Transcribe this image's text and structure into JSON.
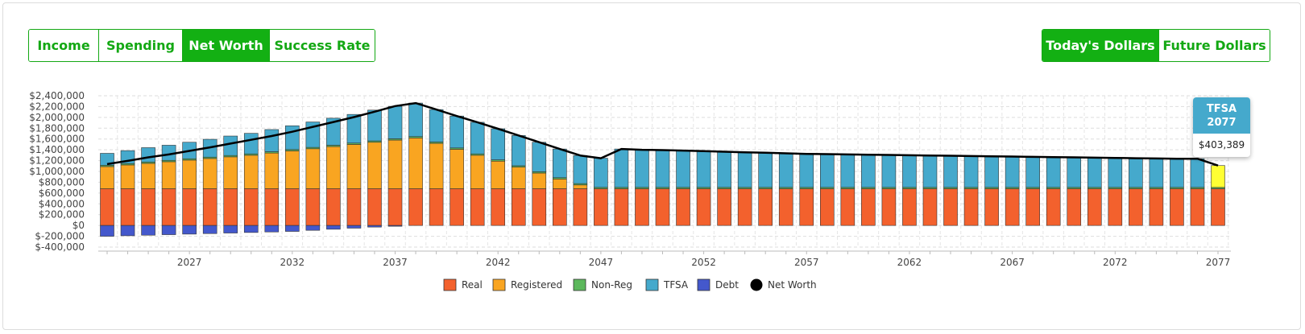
{
  "tabs": [
    {
      "label": "Income",
      "active": false
    },
    {
      "label": "Spending",
      "active": false
    },
    {
      "label": "Net Worth",
      "active": true
    },
    {
      "label": "Success Rate",
      "active": false
    }
  ],
  "dollar_toggle": [
    {
      "label": "Today's Dollars",
      "active": true
    },
    {
      "label": "Future Dollars",
      "active": false
    }
  ],
  "tooltip": {
    "series": "TFSA",
    "year": "2077",
    "value": "$403,389"
  },
  "colors": {
    "Real": "#f3612d",
    "Registered": "#f9a521",
    "Non-Reg": "#5cb85c",
    "TFSA": "#45a9cc",
    "Debt": "#4458cc",
    "Net Worth": "#000000",
    "highlight": "#ffff33",
    "accent": "#13b013"
  },
  "chart_data": {
    "type": "bar",
    "stacked": true,
    "x_start": 2023,
    "x_end": 2077,
    "xticks": [
      2027,
      2032,
      2037,
      2042,
      2047,
      2052,
      2057,
      2062,
      2067,
      2072,
      2077
    ],
    "ylim": [
      -400000,
      2400000
    ],
    "yticks": [
      2400000,
      2200000,
      2000000,
      1800000,
      1600000,
      1400000,
      1200000,
      1000000,
      800000,
      600000,
      400000,
      200000,
      0,
      -200000,
      -400000
    ],
    "ytick_labels": [
      "$2,400,000",
      "$2,200,000",
      "$2,000,000",
      "$1,800,000",
      "$1,600,000",
      "$1,400,000",
      "$1,200,000",
      "$1,000,000",
      "$800,000",
      "$600,000",
      "$400,000",
      "$200,000",
      "$0",
      "$-200,000",
      "$-400,000"
    ],
    "grid": true,
    "legend_position": "bottom",
    "highlight_year": 2077,
    "series": [
      {
        "name": "Real",
        "values": [
          680000,
          680000,
          680000,
          680000,
          680000,
          680000,
          680000,
          680000,
          680000,
          680000,
          680000,
          680000,
          680000,
          680000,
          680000,
          680000,
          680000,
          680000,
          680000,
          680000,
          680000,
          680000,
          680000,
          680000,
          680000,
          680000,
          680000,
          680000,
          680000,
          680000,
          680000,
          680000,
          680000,
          680000,
          680000,
          680000,
          680000,
          680000,
          680000,
          680000,
          680000,
          680000,
          680000,
          680000,
          680000,
          680000,
          680000,
          680000,
          680000,
          680000,
          680000,
          680000,
          680000,
          680000,
          680000
        ]
      },
      {
        "name": "Registered",
        "values": [
          410000,
          440000,
          470000,
          500000,
          530000,
          560000,
          590000,
          620000,
          660000,
          700000,
          740000,
          780000,
          820000,
          860000,
          900000,
          940000,
          840000,
          730000,
          620000,
          510000,
          400000,
          290000,
          180000,
          70000,
          0,
          0,
          0,
          0,
          0,
          0,
          0,
          0,
          0,
          0,
          0,
          0,
          0,
          0,
          0,
          0,
          0,
          0,
          0,
          0,
          0,
          0,
          0,
          0,
          0,
          0,
          0,
          0,
          0,
          0,
          0
        ]
      },
      {
        "name": "Non-Reg",
        "values": [
          25000,
          25000,
          25000,
          25000,
          25000,
          25000,
          25000,
          25000,
          25000,
          25000,
          25000,
          25000,
          25000,
          25000,
          25000,
          25000,
          25000,
          25000,
          25000,
          25000,
          25000,
          25000,
          25000,
          25000,
          25000,
          25000,
          25000,
          25000,
          25000,
          25000,
          25000,
          25000,
          25000,
          25000,
          25000,
          25000,
          25000,
          25000,
          25000,
          25000,
          25000,
          25000,
          25000,
          25000,
          25000,
          25000,
          25000,
          25000,
          25000,
          25000,
          25000,
          25000,
          25000,
          25000,
          25000
        ]
      },
      {
        "name": "TFSA",
        "values": [
          220000,
          240000,
          265000,
          280000,
          305000,
          330000,
          360000,
          380000,
          410000,
          440000,
          470000,
          500000,
          530000,
          570000,
          600000,
          620000,
          600000,
          590000,
          585000,
          575000,
          560000,
          545000,
          530000,
          520000,
          540000,
          710000,
          695000,
          690000,
          680000,
          670000,
          660000,
          650000,
          640000,
          630000,
          620000,
          615000,
          610000,
          605000,
          600000,
          595000,
          590000,
          585000,
          580000,
          575000,
          570000,
          565000,
          560000,
          555000,
          550000,
          545000,
          540000,
          535000,
          530000,
          530000,
          403389
        ]
      },
      {
        "name": "Debt",
        "values": [
          -200000,
          -190000,
          -180000,
          -170000,
          -160000,
          -150000,
          -140000,
          -130000,
          -120000,
          -110000,
          -90000,
          -70000,
          -50000,
          -30000,
          -15000,
          0,
          0,
          0,
          0,
          0,
          0,
          0,
          0,
          0,
          0,
          0,
          0,
          0,
          0,
          0,
          0,
          0,
          0,
          0,
          0,
          0,
          0,
          0,
          0,
          0,
          0,
          0,
          0,
          0,
          0,
          0,
          0,
          0,
          0,
          0,
          0,
          0,
          0,
          0,
          0
        ]
      },
      {
        "name": "Net Worth",
        "type": "line",
        "values": [
          1135000,
          1195000,
          1260000,
          1315000,
          1380000,
          1445000,
          1515000,
          1585000,
          1655000,
          1735000,
          1825000,
          1915000,
          2005000,
          2105000,
          2210000,
          2265000,
          2145000,
          2025000,
          1910000,
          1790000,
          1665000,
          1540000,
          1415000,
          1295000,
          1245000,
          1415000,
          1400000,
          1395000,
          1385000,
          1375000,
          1365000,
          1355000,
          1345000,
          1335000,
          1325000,
          1320000,
          1315000,
          1310000,
          1305000,
          1300000,
          1295000,
          1290000,
          1285000,
          1280000,
          1275000,
          1270000,
          1265000,
          1260000,
          1255000,
          1250000,
          1245000,
          1240000,
          1235000,
          1235000,
          1108389
        ]
      }
    ]
  }
}
